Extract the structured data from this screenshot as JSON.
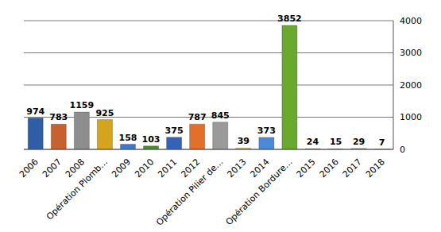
{
  "chart_data": {
    "type": "bar",
    "categories": [
      "2006",
      "2007",
      "2008",
      "Opération Plomb…",
      "2009",
      "2010",
      "2011",
      "2012",
      "Opération Pilier de…",
      "2013",
      "2014",
      "Opération Bordure…",
      "2015",
      "2016",
      "2017",
      "2018"
    ],
    "values": [
      974,
      783,
      1159,
      925,
      158,
      103,
      375,
      787,
      845,
      39,
      373,
      3852,
      24,
      15,
      29,
      7
    ],
    "colors": [
      "#2f5da6",
      "#c5622f",
      "#8e8e8e",
      "#d6a31c",
      "#3f78c8",
      "#4f8a2c",
      "#3363b8",
      "#e2702a",
      "#9a9a9a",
      "#e0b21a",
      "#4a8ad8",
      "#6aa82e",
      "#8899aa",
      "#d08a50",
      "#9a9a9a",
      "#d08a50"
    ],
    "ylim": [
      0,
      4000
    ],
    "yticks": [
      0,
      1000,
      2000,
      3000,
      4000
    ],
    "grid": true,
    "data_labels": true
  }
}
